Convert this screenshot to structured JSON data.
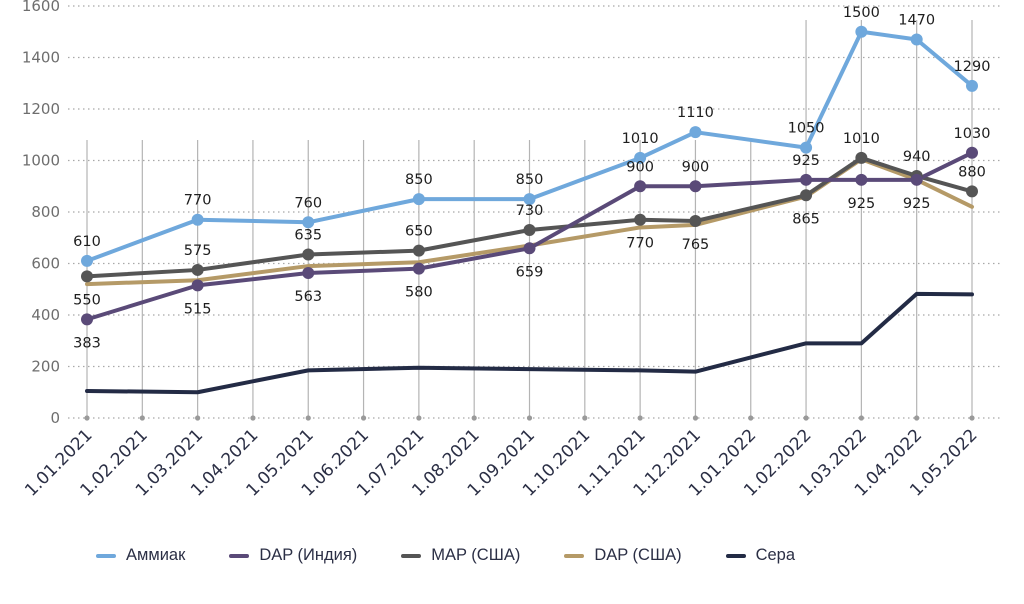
{
  "chart_data": {
    "type": "line",
    "title": "",
    "xlabel": "",
    "ylabel": "",
    "ylim": [
      0,
      1600
    ],
    "yticks": [
      0,
      200,
      400,
      600,
      800,
      1000,
      1200,
      1400,
      1600
    ],
    "grid": "horizontal dotted, vertical solid",
    "legend_position": "bottom",
    "categories": [
      "1.01.2021",
      "1.02.2021",
      "1.03.2021",
      "1.04.2021",
      "1.05.2021",
      "1.06.2021",
      "1.07.2021",
      "1.08.2021",
      "1.09.2021",
      "1.10.2021",
      "1.11.2021",
      "1.12.2021",
      "1.01.2022",
      "1.02.2022",
      "1.03.2022",
      "1.04.2022",
      "1.05.2022"
    ],
    "series": [
      {
        "name": "Аммиак",
        "color": "#6fa8dc",
        "markers": true,
        "values": [
          610,
          null,
          770,
          null,
          760,
          null,
          850,
          null,
          850,
          null,
          1010,
          1110,
          null,
          1050,
          1500,
          1470,
          1290
        ],
        "labels": [
          610,
          null,
          770,
          null,
          760,
          null,
          850,
          null,
          850,
          null,
          1010,
          1110,
          null,
          1050,
          1500,
          1470,
          1290
        ],
        "label_pos": [
          "above",
          null,
          "above",
          null,
          "above",
          null,
          "above",
          null,
          "above",
          null,
          "above",
          "above",
          null,
          "above",
          "above",
          "above",
          "above"
        ]
      },
      {
        "name": "DAP (Индия)",
        "color": "#5a4a78",
        "markers": true,
        "values": [
          383,
          null,
          515,
          null,
          563,
          null,
          580,
          null,
          659,
          null,
          900,
          900,
          null,
          925,
          925,
          925,
          1030
        ],
        "labels": [
          383,
          null,
          515,
          null,
          563,
          null,
          580,
          null,
          659,
          null,
          900,
          900,
          null,
          925,
          925,
          925,
          1030
        ],
        "label_pos": [
          "below",
          null,
          "below",
          null,
          "below",
          null,
          "below",
          null,
          "below",
          null,
          "above",
          "above",
          null,
          "above",
          "below",
          "below",
          "above"
        ]
      },
      {
        "name": "MAP (США)",
        "color": "#555555",
        "markers": true,
        "values": [
          550,
          null,
          575,
          null,
          635,
          null,
          650,
          null,
          730,
          null,
          770,
          765,
          null,
          865,
          1010,
          940,
          880
        ],
        "labels": [
          550,
          null,
          575,
          null,
          635,
          null,
          650,
          null,
          730,
          null,
          770,
          765,
          null,
          865,
          1010,
          940,
          880
        ],
        "label_pos": [
          "below",
          null,
          "above",
          null,
          "above",
          null,
          "above",
          null,
          "above",
          null,
          "below",
          "below",
          null,
          "below",
          "above",
          "above",
          "above"
        ]
      },
      {
        "name": "DAP (США)",
        "color": "#b59a67",
        "markers": false,
        "values": [
          520,
          null,
          535,
          null,
          590,
          null,
          605,
          null,
          670,
          null,
          740,
          750,
          null,
          860,
          1005,
          925,
          820
        ]
      },
      {
        "name": "Сера",
        "color": "#232b45",
        "markers": false,
        "values": [
          105,
          null,
          100,
          null,
          185,
          null,
          195,
          null,
          190,
          null,
          185,
          180,
          null,
          290,
          290,
          482,
          480
        ]
      }
    ]
  }
}
